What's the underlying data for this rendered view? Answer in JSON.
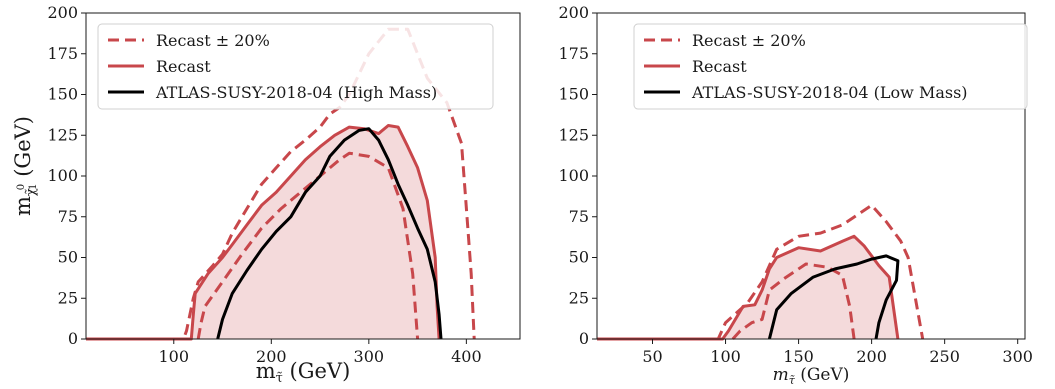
{
  "chart_data": [
    {
      "type": "line",
      "xlabel_main": "m",
      "xlabel_sub": "τ̃",
      "xlabel_unit": "(GeV)",
      "ylabel_main": "m",
      "ylabel_sub": "χ̃",
      "ylabel_sub_sup": "0",
      "ylabel_sub_sub": "1",
      "ylabel_unit": "(GeV)",
      "xlim": [
        10,
        455
      ],
      "ylim": [
        0,
        200
      ],
      "xticks": [
        100,
        200,
        300,
        400
      ],
      "yticks": [
        0,
        25,
        50,
        75,
        100,
        125,
        150,
        175,
        200
      ],
      "legend_position": "upper-left",
      "colors": {
        "recast": "#c8474b",
        "reference": "#000000",
        "fill": "rgba(200,71,75,0.2)"
      },
      "series": [
        {
          "name": "Recast ± 20%",
          "style": "dashed",
          "color": "#c8474b",
          "segments": [
            [
              [
                10,
                0
              ],
              [
                110,
                0
              ],
              [
                113,
                5
              ],
              [
                120,
                25
              ],
              [
                125,
                35
              ],
              [
                140,
                45
              ],
              [
                150,
                52
              ],
              [
                160,
                65
              ],
              [
                175,
                80
              ],
              [
                190,
                95
              ],
              [
                205,
                105
              ],
              [
                220,
                115
              ],
              [
                235,
                122
              ],
              [
                250,
                130
              ],
              [
                260,
                138
              ],
              [
                270,
                142
              ],
              [
                280,
                150
              ],
              [
                300,
                175
              ],
              [
                320,
                190
              ],
              [
                340,
                190
              ],
              [
                360,
                160
              ],
              [
                380,
                145
              ],
              [
                395,
                120
              ],
              [
                400,
                80
              ],
              [
                405,
                40
              ],
              [
                408,
                0
              ]
            ],
            [
              [
                125,
                0
              ],
              [
                128,
                10
              ],
              [
                132,
                20
              ],
              [
                150,
                35
              ],
              [
                170,
                52
              ],
              [
                190,
                68
              ],
              [
                210,
                80
              ],
              [
                230,
                90
              ],
              [
                250,
                100
              ],
              [
                270,
                110
              ],
              [
                280,
                114
              ],
              [
                300,
                112
              ],
              [
                320,
                105
              ],
              [
                335,
                80
              ],
              [
                345,
                40
              ],
              [
                350,
                0
              ]
            ]
          ]
        },
        {
          "name": "Recast",
          "style": "solid",
          "color": "#c8474b",
          "filled": true,
          "points": [
            [
              10,
              0
            ],
            [
              118,
              0
            ],
            [
              120,
              15
            ],
            [
              122,
              28
            ],
            [
              135,
              40
            ],
            [
              150,
              50
            ],
            [
              160,
              58
            ],
            [
              175,
              70
            ],
            [
              190,
              82
            ],
            [
              205,
              90
            ],
            [
              220,
              100
            ],
            [
              235,
              110
            ],
            [
              250,
              118
            ],
            [
              265,
              125
            ],
            [
              280,
              130
            ],
            [
              295,
              129
            ],
            [
              310,
              126
            ],
            [
              320,
              131
            ],
            [
              330,
              130
            ],
            [
              340,
              118
            ],
            [
              350,
              105
            ],
            [
              360,
              85
            ],
            [
              368,
              50
            ],
            [
              370,
              20
            ],
            [
              372,
              0
            ]
          ]
        },
        {
          "name": "ATLAS-SUSY-2018-04 (High Mass)",
          "style": "solid",
          "color": "#000000",
          "points": [
            [
              145,
              0
            ],
            [
              150,
              12
            ],
            [
              160,
              28
            ],
            [
              175,
              42
            ],
            [
              190,
              55
            ],
            [
              205,
              66
            ],
            [
              220,
              75
            ],
            [
              235,
              90
            ],
            [
              250,
              100
            ],
            [
              260,
              112
            ],
            [
              275,
              122
            ],
            [
              290,
              128
            ],
            [
              300,
              129
            ],
            [
              310,
              122
            ],
            [
              320,
              110
            ],
            [
              330,
              95
            ],
            [
              340,
              82
            ],
            [
              350,
              68
            ],
            [
              360,
              55
            ],
            [
              368,
              35
            ],
            [
              372,
              15
            ],
            [
              374,
              0
            ]
          ]
        }
      ]
    },
    {
      "type": "line",
      "xlabel_main": "m",
      "xlabel_sub": "τ̃",
      "xlabel_unit": "(GeV)",
      "xlim": [
        12,
        305
      ],
      "ylim": [
        0,
        200
      ],
      "xticks": [
        50,
        100,
        150,
        200,
        250,
        300
      ],
      "yticks": [
        0,
        25,
        50,
        75,
        100,
        125,
        150,
        175,
        200
      ],
      "legend_position": "upper-right",
      "colors": {
        "recast": "#c8474b",
        "reference": "#000000",
        "fill": "rgba(200,71,75,0.2)"
      },
      "series": [
        {
          "name": "Recast ± 20%",
          "style": "dashed",
          "color": "#c8474b",
          "segments": [
            [
              [
                12,
                0
              ],
              [
                95,
                0
              ],
              [
                100,
                10
              ],
              [
                115,
                22
              ],
              [
                125,
                35
              ],
              [
                135,
                55
              ],
              [
                150,
                63
              ],
              [
                165,
                65
              ],
              [
                180,
                70
              ],
              [
                190,
                76
              ],
              [
                200,
                82
              ],
              [
                210,
                72
              ],
              [
                220,
                60
              ],
              [
                225,
                50
              ],
              [
                230,
                25
              ],
              [
                235,
                0
              ]
            ],
            [
              [
                105,
                0
              ],
              [
                110,
                5
              ],
              [
                118,
                10
              ],
              [
                125,
                12
              ],
              [
                130,
                30
              ],
              [
                140,
                37
              ],
              [
                155,
                46
              ],
              [
                170,
                44
              ],
              [
                180,
                39
              ],
              [
                185,
                20
              ],
              [
                188,
                0
              ]
            ]
          ]
        },
        {
          "name": "Recast",
          "style": "solid",
          "color": "#c8474b",
          "filled": true,
          "points": [
            [
              12,
              0
            ],
            [
              98,
              0
            ],
            [
              102,
              5
            ],
            [
              112,
              20
            ],
            [
              120,
              21
            ],
            [
              125,
              30
            ],
            [
              130,
              43
            ],
            [
              135,
              50
            ],
            [
              150,
              56
            ],
            [
              165,
              54
            ],
            [
              180,
              60
            ],
            [
              188,
              63
            ],
            [
              195,
              57
            ],
            [
              205,
              45
            ],
            [
              212,
              38
            ],
            [
              218,
              0
            ]
          ]
        },
        {
          "name": "ATLAS-SUSY-2018-04 (Low Mass)",
          "style": "solid",
          "color": "#000000",
          "points": [
            [
              130,
              0
            ],
            [
              135,
              18
            ],
            [
              145,
              28
            ],
            [
              160,
              38
            ],
            [
              175,
              43
            ],
            [
              190,
              46
            ],
            [
              200,
              49
            ],
            [
              210,
              51
            ],
            [
              218,
              48
            ],
            [
              217,
              36
            ],
            [
              210,
              24
            ],
            [
              205,
              10
            ],
            [
              203,
              0
            ]
          ]
        }
      ]
    }
  ]
}
